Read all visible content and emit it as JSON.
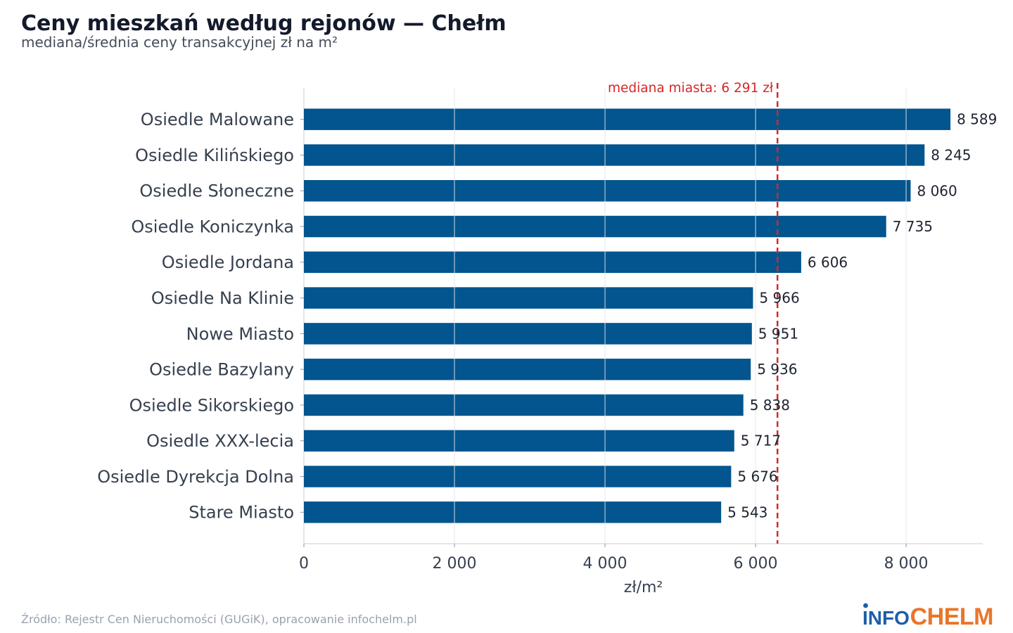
{
  "chart_data": {
    "type": "bar",
    "orientation": "horizontal",
    "title": "Ceny mieszkań według rejonów — Chełm",
    "subtitle": "mediana/średnia ceny transakcyjnej zł na m²",
    "categories": [
      "Osiedle Malowane",
      "Osiedle Kilińskiego",
      "Osiedle Słoneczne",
      "Osiedle Koniczynka",
      "Osiedle Jordana",
      "Osiedle Na Klinie",
      "Nowe Miasto",
      "Osiedle Bazylany",
      "Osiedle Sikorskiego",
      "Osiedle XXX-lecia",
      "Osiedle Dyrekcja Dolna",
      "Stare Miasto"
    ],
    "values": [
      8589,
      8245,
      8060,
      7735,
      6606,
      5966,
      5951,
      5936,
      5838,
      5717,
      5676,
      5543
    ],
    "value_labels": [
      "8 589",
      "8 245",
      "8 060",
      "7 735",
      "6 606",
      "5 966",
      "5 951",
      "5 936",
      "5 838",
      "5 717",
      "5 676",
      "5 543"
    ],
    "xlabel": "zł/m²",
    "xlim": [
      0,
      9018
    ],
    "xticks": [
      0,
      2000,
      4000,
      6000,
      8000
    ],
    "xtick_labels": [
      "0",
      "2 000",
      "4 000",
      "6 000",
      "8 000"
    ],
    "grid": true,
    "bar_color": "#02558e",
    "reference_line": {
      "value": 6291,
      "label": "mediana miasta: 6 291 zł",
      "style": "dashed",
      "color": "#d62728"
    }
  },
  "footer": {
    "source": "Źródło: Rejestr Cen Nieruchomości (GUGiK), opracowanie infochelm.pl",
    "logo": {
      "part1": "INFO",
      "part2": "CHELM",
      "info_color": "#1d5fa9",
      "chelm_color": "#e8762b"
    }
  }
}
